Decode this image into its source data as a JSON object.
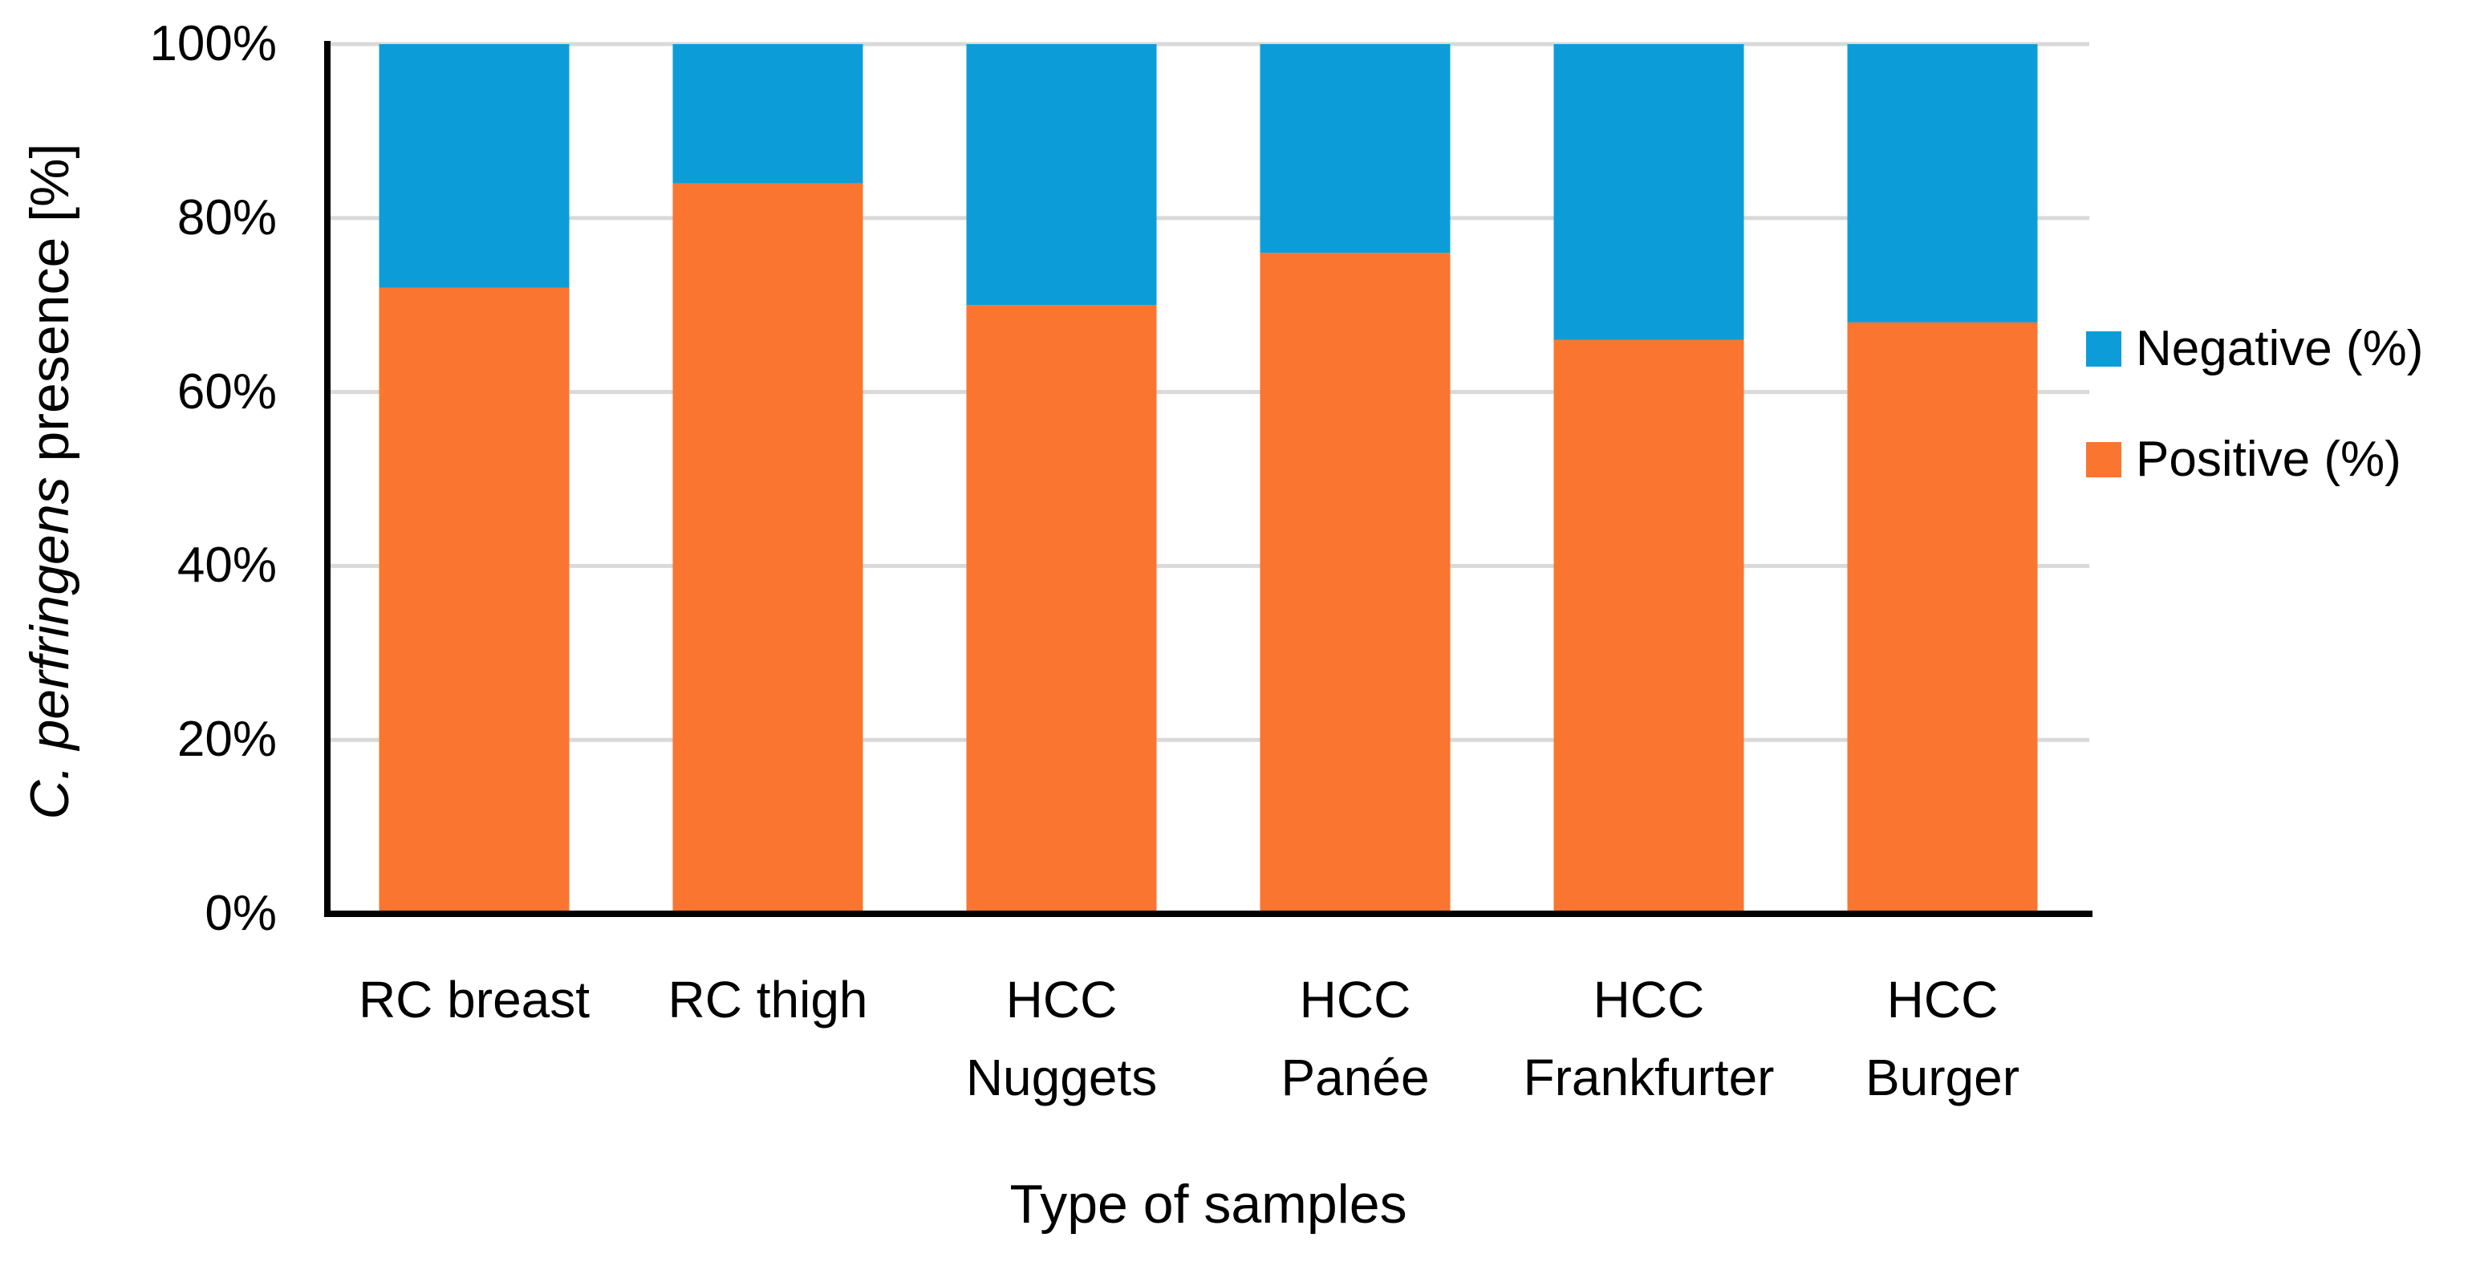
{
  "figure": {
    "background": "#ffffff"
  },
  "chart_data": {
    "type": "bar",
    "subtype": "stacked-100",
    "categories": [
      "RC breast",
      "RC thigh",
      "HCC Nuggets",
      "HCC Panée",
      "HCC Frankfurter",
      "HCC Burger"
    ],
    "category_label_lines": [
      [
        "RC breast"
      ],
      [
        "RC thigh"
      ],
      [
        "HCC",
        "Nuggets"
      ],
      [
        "HCC",
        "Panée"
      ],
      [
        "HCC",
        "Frankfurter"
      ],
      [
        "HCC",
        "Burger"
      ]
    ],
    "series": [
      {
        "name": "Positive (%)",
        "color": "#FA7530",
        "values": [
          72,
          84,
          70,
          76,
          66,
          68
        ]
      },
      {
        "name": "Negative (%)",
        "color": "#0C9DD9",
        "values": [
          28,
          16,
          30,
          24,
          34,
          32
        ]
      }
    ],
    "stack_order_bottom_to_top": [
      "Positive (%)",
      "Negative (%)"
    ],
    "y_axis": {
      "title_italic": "C. perfringens",
      "title_rest": " presence [%]",
      "min": 0,
      "max": 100,
      "tick_step": 20,
      "tick_labels": [
        "0%",
        "20%",
        "40%",
        "60%",
        "80%",
        "100%"
      ]
    },
    "x_axis": {
      "title": "Type of samples"
    },
    "legend": [
      {
        "label": "Negative (%)",
        "color": "#0C9DD9"
      },
      {
        "label": "Positive (%)",
        "color": "#FA7530"
      }
    ],
    "grid": {
      "horizontal": true,
      "color": "#D9D9D9"
    },
    "axis_color": "#000000",
    "legend_position": "right"
  }
}
